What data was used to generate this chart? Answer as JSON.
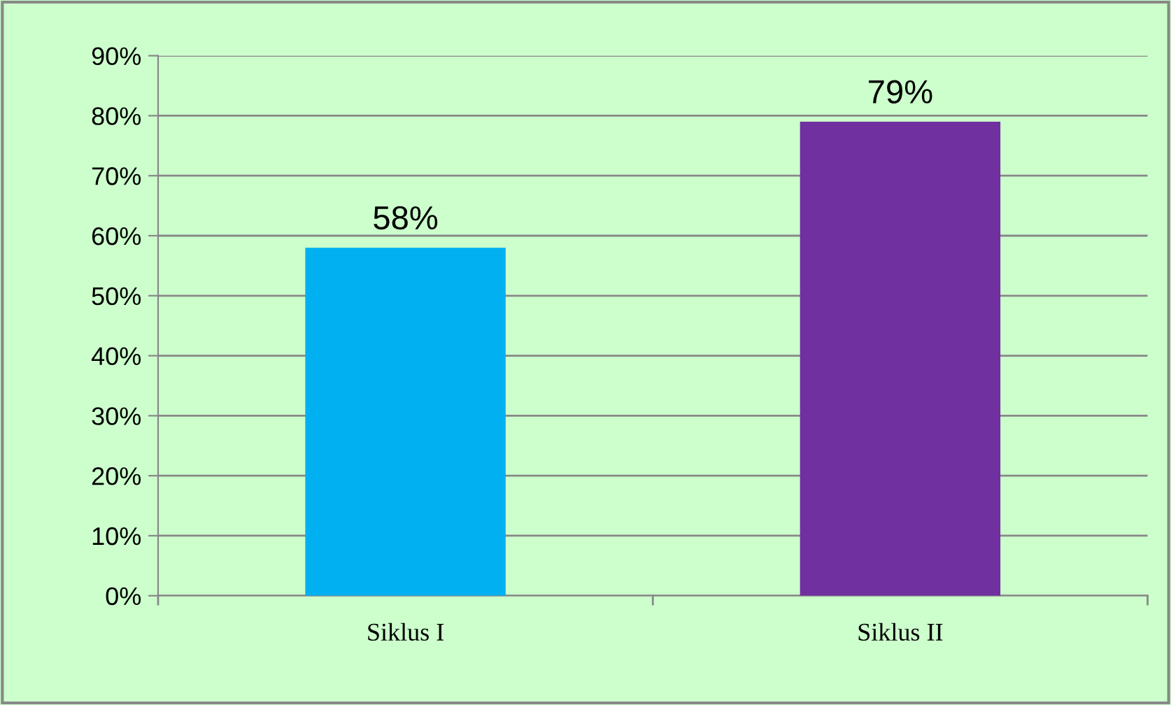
{
  "chart_data": {
    "type": "bar",
    "categories": [
      "Siklus I",
      "Siklus II"
    ],
    "values": [
      58,
      79
    ],
    "colors": [
      "#00b0f0",
      "#7030a0"
    ],
    "value_labels": [
      "58%",
      "79%"
    ],
    "ylim": [
      0,
      90
    ],
    "yticks": [
      {
        "value": 0,
        "label": "0%"
      },
      {
        "value": 10,
        "label": "10%"
      },
      {
        "value": 20,
        "label": "20%"
      },
      {
        "value": 30,
        "label": "30%"
      },
      {
        "value": 40,
        "label": "40%"
      },
      {
        "value": 50,
        "label": "50%"
      },
      {
        "value": 60,
        "label": "60%"
      },
      {
        "value": 70,
        "label": "70%"
      },
      {
        "value": 80,
        "label": "80%"
      },
      {
        "value": 90,
        "label": "90%"
      }
    ],
    "grid": "y",
    "legend": false
  }
}
